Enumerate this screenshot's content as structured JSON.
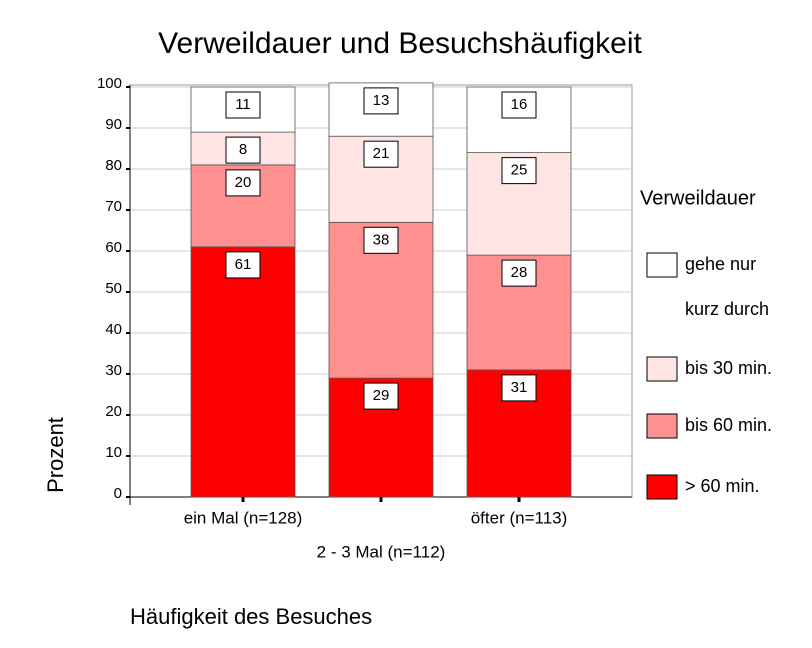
{
  "chart_data": {
    "type": "stacked_bar",
    "title": "Verweildauer und Besuchshäufigkeit",
    "x_label": "Häufigkeit des Besuches",
    "y_label": "Prozent",
    "legend_title": "Verweildauer",
    "categories": [
      "ein Mal (n=128)",
      "2 - 3 Mal (n=112)",
      "öfter (n=113)"
    ],
    "series": [
      {
        "name": "> 60 min.",
        "color": "#ff0000",
        "values": [
          61,
          29,
          31
        ]
      },
      {
        "name": "bis 60 min.",
        "color": "#ff9090",
        "values": [
          20,
          38,
          28
        ]
      },
      {
        "name": "bis 30 min.",
        "color": "#ffe4e4",
        "values": [
          8,
          21,
          25
        ]
      },
      {
        "name": "gehe nur kurz durch",
        "color": "#ffffff",
        "values": [
          11,
          13,
          16
        ]
      }
    ],
    "ylim": [
      0,
      100
    ],
    "yticks": [
      0,
      10,
      20,
      30,
      40,
      50,
      60,
      70,
      80,
      90,
      100
    ],
    "grid": true,
    "legend": "right"
  }
}
